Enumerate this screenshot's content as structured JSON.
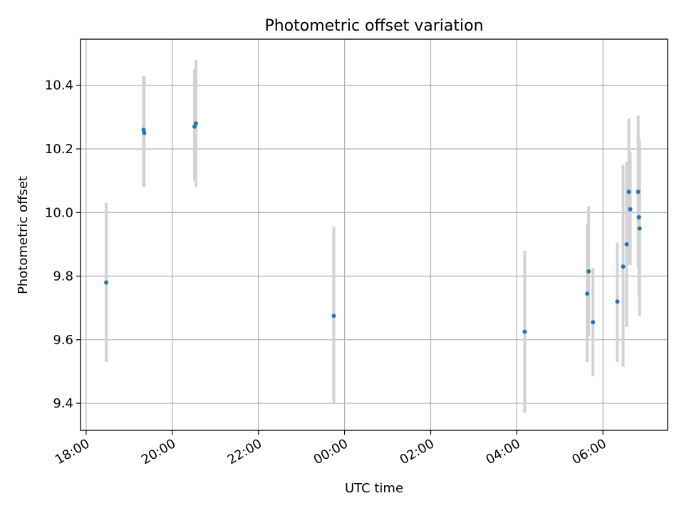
{
  "chart_data": {
    "type": "scatter",
    "title": "Photometric offset variation",
    "xlabel": "UTC time",
    "ylabel": "Photometric offset",
    "x_ticks": [
      "18:00",
      "20:00",
      "22:00",
      "00:00",
      "02:00",
      "04:00",
      "06:00"
    ],
    "y_ticks": [
      "9.4",
      "9.6",
      "9.8",
      "10.0",
      "10.2",
      "10.4"
    ],
    "x_tick_hours": [
      18,
      20,
      22,
      24,
      26,
      28,
      30
    ],
    "y_tick_values": [
      9.4,
      9.6,
      9.8,
      10.0,
      10.2,
      10.4
    ],
    "xlim_hours": [
      17.87,
      31.5
    ],
    "ylim": [
      9.315,
      10.545
    ],
    "grid": true,
    "points": [
      {
        "x": "18:28",
        "y": 9.78,
        "ylow": 9.53,
        "yhigh": 10.03
      },
      {
        "x": "19:20",
        "y": 10.26,
        "ylow": 10.08,
        "yhigh": 10.43
      },
      {
        "x": "19:21",
        "y": 10.25,
        "ylow": 10.08,
        "yhigh": 10.43
      },
      {
        "x": "20:31",
        "y": 10.27,
        "ylow": 10.1,
        "yhigh": 10.45
      },
      {
        "x": "20:33",
        "y": 10.28,
        "ylow": 10.08,
        "yhigh": 10.48
      },
      {
        "x": "23:45",
        "y": 9.675,
        "ylow": 9.4,
        "yhigh": 9.955
      },
      {
        "x": "04:11",
        "y": 9.625,
        "ylow": 9.37,
        "yhigh": 9.88
      },
      {
        "x": "05:38",
        "y": 9.745,
        "ylow": 9.53,
        "yhigh": 9.965
      },
      {
        "x": "05:40",
        "y": 9.815,
        "ylow": 9.61,
        "yhigh": 10.02
      },
      {
        "x": "05:46",
        "y": 9.655,
        "ylow": 9.485,
        "yhigh": 9.825
      },
      {
        "x": "06:20",
        "y": 9.72,
        "ylow": 9.53,
        "yhigh": 9.905
      },
      {
        "x": "06:28",
        "y": 9.83,
        "ylow": 9.515,
        "yhigh": 10.15
      },
      {
        "x": "06:33",
        "y": 9.9,
        "ylow": 9.64,
        "yhigh": 10.16
      },
      {
        "x": "06:36",
        "y": 10.065,
        "ylow": 9.835,
        "yhigh": 10.295
      },
      {
        "x": "06:38",
        "y": 10.01,
        "ylow": 9.835,
        "yhigh": 10.19
      },
      {
        "x": "06:49",
        "y": 10.065,
        "ylow": 9.83,
        "yhigh": 10.305
      },
      {
        "x": "06:50",
        "y": 9.985,
        "ylow": 9.735,
        "yhigh": 10.235
      },
      {
        "x": "06:51",
        "y": 9.95,
        "ylow": 9.675,
        "yhigh": 10.225
      }
    ],
    "marker_color": "#1f77b4",
    "errorbar_color": "#d3d3d3",
    "grid_color": "#b0b0b0"
  }
}
